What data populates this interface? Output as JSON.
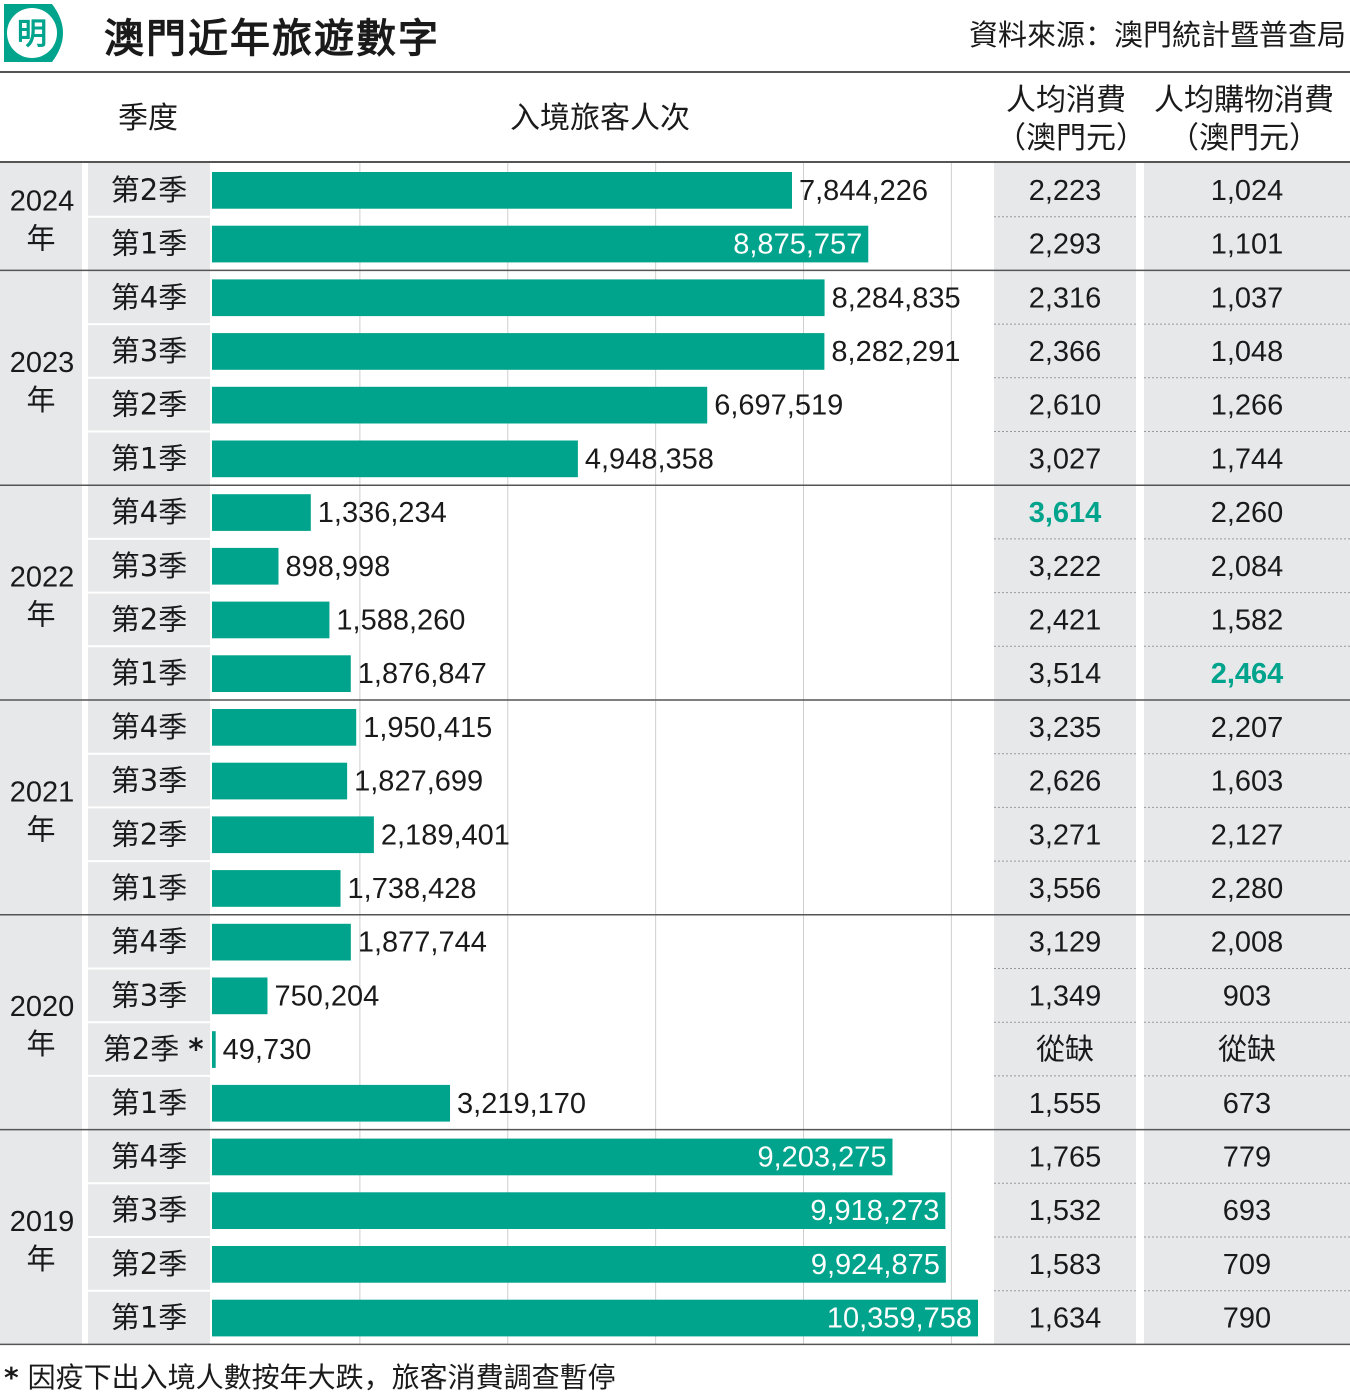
{
  "header": {
    "logo_text": "明",
    "title": "澳門近年旅遊數字",
    "source": "資料來源：澳門統計暨普查局"
  },
  "columns": {
    "quarter": "季度",
    "visitors": "入境旅客人次",
    "spend_line1": "人均消費",
    "spend_line2": "（澳門元）",
    "shop_line1": "人均購物消費",
    "shop_line2": "（澳門元）"
  },
  "footnote": {
    "star": "*",
    "text": "因疫下出入境人數按年大跌，旅客消費調查暫停"
  },
  "colors": {
    "bar": "#00a38b",
    "highlight": "#00a38b",
    "band_shade": "#e6e8ea",
    "text": "#1a1a1a"
  },
  "chart_data": {
    "type": "bar",
    "orientation": "horizontal",
    "title": "澳門近年旅遊數字",
    "xlim": [
      0,
      10500000
    ],
    "grid": true,
    "groups": [
      {
        "year": "2024",
        "suffix": "年",
        "rows": [
          {
            "quarter": "第2季",
            "visitors": 7844226,
            "visitors_label": "7,844,226",
            "spend": "2,223",
            "shop": "1,024"
          },
          {
            "quarter": "第1季",
            "visitors": 8875757,
            "visitors_label": "8,875,757",
            "spend": "2,293",
            "shop": "1,101"
          }
        ]
      },
      {
        "year": "2023",
        "suffix": "年",
        "rows": [
          {
            "quarter": "第4季",
            "visitors": 8284835,
            "visitors_label": "8,284,835",
            "spend": "2,316",
            "shop": "1,037"
          },
          {
            "quarter": "第3季",
            "visitors": 8282291,
            "visitors_label": "8,282,291",
            "spend": "2,366",
            "shop": "1,048"
          },
          {
            "quarter": "第2季",
            "visitors": 6697519,
            "visitors_label": "6,697,519",
            "spend": "2,610",
            "shop": "1,266"
          },
          {
            "quarter": "第1季",
            "visitors": 4948358,
            "visitors_label": "4,948,358",
            "spend": "3,027",
            "shop": "1,744"
          }
        ]
      },
      {
        "year": "2022",
        "suffix": "年",
        "rows": [
          {
            "quarter": "第4季",
            "visitors": 1336234,
            "visitors_label": "1,336,234",
            "spend": "3,614",
            "shop": "2,260",
            "spend_highlight": true
          },
          {
            "quarter": "第3季",
            "visitors": 898998,
            "visitors_label": "898,998",
            "spend": "3,222",
            "shop": "2,084"
          },
          {
            "quarter": "第2季",
            "visitors": 1588260,
            "visitors_label": "1,588,260",
            "spend": "2,421",
            "shop": "1,582"
          },
          {
            "quarter": "第1季",
            "visitors": 1876847,
            "visitors_label": "1,876,847",
            "spend": "3,514",
            "shop": "2,464",
            "shop_highlight": true
          }
        ]
      },
      {
        "year": "2021",
        "suffix": "年",
        "rows": [
          {
            "quarter": "第4季",
            "visitors": 1950415,
            "visitors_label": "1,950,415",
            "spend": "3,235",
            "shop": "2,207"
          },
          {
            "quarter": "第3季",
            "visitors": 1827699,
            "visitors_label": "1,827,699",
            "spend": "2,626",
            "shop": "1,603"
          },
          {
            "quarter": "第2季",
            "visitors": 2189401,
            "visitors_label": "2,189,401",
            "spend": "3,271",
            "shop": "2,127"
          },
          {
            "quarter": "第1季",
            "visitors": 1738428,
            "visitors_label": "1,738,428",
            "spend": "3,556",
            "shop": "2,280"
          }
        ]
      },
      {
        "year": "2020",
        "suffix": "年",
        "rows": [
          {
            "quarter": "第4季",
            "visitors": 1877744,
            "visitors_label": "1,877,744",
            "spend": "3,129",
            "shop": "2,008"
          },
          {
            "quarter": "第3季",
            "visitors": 750204,
            "visitors_label": "750,204",
            "spend": "1,349",
            "shop": "903"
          },
          {
            "quarter": "第2季*",
            "visitors": 49730,
            "visitors_label": "49,730",
            "spend": "從缺",
            "shop": "從缺"
          },
          {
            "quarter": "第1季",
            "visitors": 3219170,
            "visitors_label": "3,219,170",
            "spend": "1,555",
            "shop": "673"
          }
        ]
      },
      {
        "year": "2019",
        "suffix": "年",
        "rows": [
          {
            "quarter": "第4季",
            "visitors": 9203275,
            "visitors_label": "9,203,275",
            "spend": "1,765",
            "shop": "779"
          },
          {
            "quarter": "第3季",
            "visitors": 9918273,
            "visitors_label": "9,918,273",
            "spend": "1,532",
            "shop": "693"
          },
          {
            "quarter": "第2季",
            "visitors": 9924875,
            "visitors_label": "9,924,875",
            "spend": "1,583",
            "shop": "709"
          },
          {
            "quarter": "第1季",
            "visitors": 10359758,
            "visitors_label": "10,359,758",
            "spend": "1,634",
            "shop": "790"
          }
        ]
      }
    ]
  }
}
